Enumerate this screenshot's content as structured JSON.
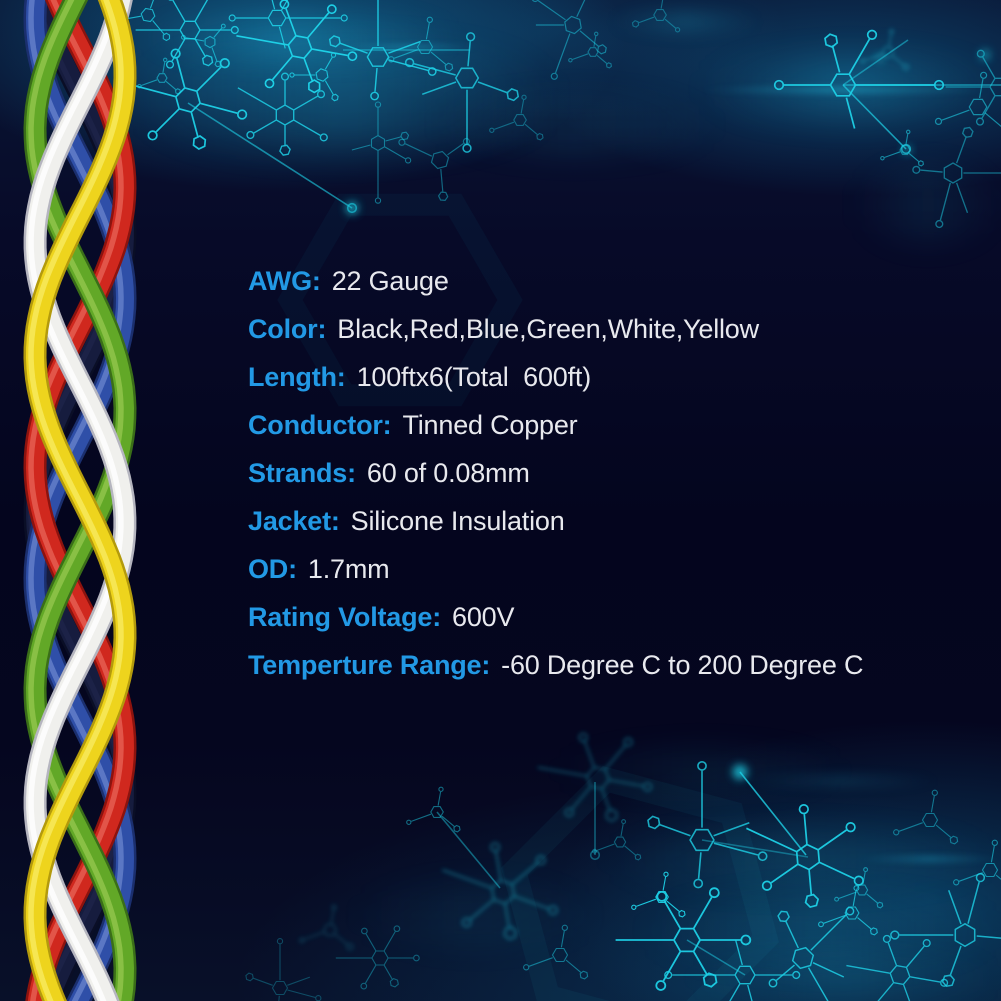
{
  "specs": {
    "items": [
      {
        "label": "AWG:",
        "value": "22 Gauge"
      },
      {
        "label": "Color:",
        "value": "Black,Red,Blue,Green,White,Yellow"
      },
      {
        "label": "Length:",
        "value": "100ftx6(Total  600ft)"
      },
      {
        "label": "Conductor:",
        "value": "Tinned Copper"
      },
      {
        "label": "Strands:",
        "value": "60 of 0.08mm"
      },
      {
        "label": "Jacket:",
        "value": "Silicone Insulation"
      },
      {
        "label": "OD:",
        "value": "1.7mm"
      },
      {
        "label": "Rating Voltage:",
        "value": "600V"
      },
      {
        "label": "Temperture Range:",
        "value": "-60 Degree C to 200 Degree C"
      }
    ]
  },
  "decor": {
    "pattern_name": "circuit-molecule-network",
    "wire_colors_visible": [
      "red",
      "green",
      "yellow",
      "white",
      "blue"
    ]
  },
  "colors": {
    "background": "#060826",
    "label_blue": "#2299e5",
    "value_white": "#e8e9ee",
    "circuit_cyan": "#1ed0e6",
    "wire_red": "#d0281e",
    "wire_blue": "#2f4fa8",
    "wire_green": "#62a827",
    "wire_white": "#f0f0ed",
    "wire_yellow": "#eed41d",
    "wire_black": "#161c3e"
  }
}
